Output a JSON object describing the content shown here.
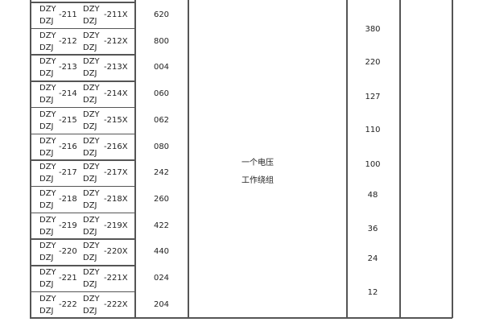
{
  "rows": [
    {
      "a": "DZY",
      "b": "DZJ",
      "num": "-211",
      "c": "DZY",
      "d": "DZJ",
      "suffix": "-211X",
      "code": "620"
    },
    {
      "a": "DZY",
      "b": "DZJ",
      "num": "-212",
      "c": "DZY",
      "d": "DZJ",
      "suffix": "-212X",
      "code": "800"
    },
    {
      "a": "DZY",
      "b": "DZJ",
      "num": "-213",
      "c": "DZY",
      "d": "DZJ",
      "suffix": "-213X",
      "code": "004"
    },
    {
      "a": "DZY",
      "b": "DZJ",
      "num": "-214",
      "c": "DZY",
      "d": "DZJ",
      "suffix": "-214X",
      "code": "060"
    },
    {
      "a": "DZY",
      "b": "DZJ",
      "num": "-215",
      "c": "DZY",
      "d": "DZJ",
      "suffix": "-215X",
      "code": "062"
    },
    {
      "a": "DZY",
      "b": "DZJ",
      "num": "-216",
      "c": "DZY",
      "d": "DZJ",
      "suffix": "-216X",
      "code": "080"
    },
    {
      "a": "DZY",
      "b": "DZJ",
      "num": "-217",
      "c": "DZY",
      "d": "DZJ",
      "suffix": "-217X",
      "code": "242"
    },
    {
      "a": "DZY",
      "b": "DZJ",
      "num": "-218",
      "c": "DZY",
      "d": "DZJ",
      "suffix": "-218X",
      "code": "260"
    },
    {
      "a": "DZY",
      "b": "DZJ",
      "num": "-219",
      "c": "DZY",
      "d": "DZJ",
      "suffix": "-219X",
      "code": "422"
    },
    {
      "a": "DZY",
      "b": "DZJ",
      "num": "-220",
      "c": "DZY",
      "d": "DZJ",
      "suffix": "-220X",
      "code": "440"
    },
    {
      "a": "DZY",
      "b": "DZJ",
      "num": "-221",
      "c": "DZY",
      "d": "DZJ",
      "suffix": "-221X",
      "code": "024"
    },
    {
      "a": "DZY",
      "b": "DZJ",
      "num": "-222",
      "c": "DZY",
      "d": "DZJ",
      "suffix": "-222X",
      "code": "204"
    }
  ],
  "description": {
    "line1": "一个电压",
    "line2": "工作绕组"
  },
  "voltages": [
    "380",
    "220",
    "127",
    "110",
    "100",
    "48",
    "36",
    "24",
    "12"
  ]
}
